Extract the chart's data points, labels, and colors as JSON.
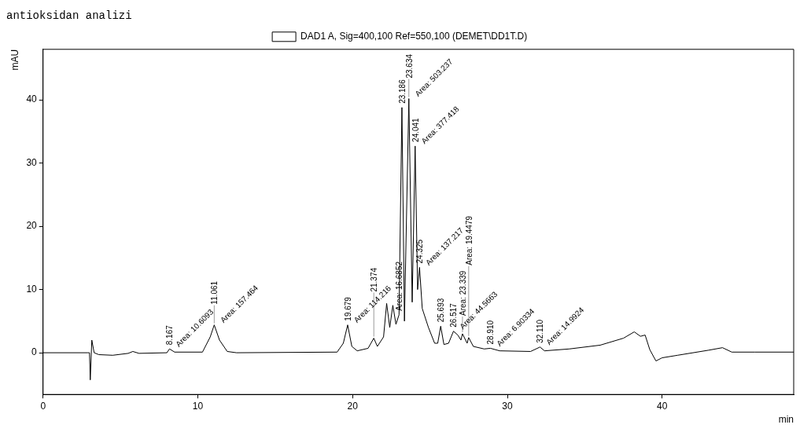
{
  "chart_data": {
    "type": "line",
    "title": "antioksidan analizi",
    "xlabel": "min",
    "ylabel": "mAU",
    "legend": "top",
    "xlim": [
      0,
      48.5
    ],
    "xticks": [
      0,
      10,
      20,
      30,
      40
    ],
    "ylim": [
      -6.6,
      48
    ],
    "yticks": [
      0,
      10,
      20,
      30,
      40
    ],
    "grid": false,
    "marker": "none",
    "line_style": "solid",
    "series": [
      {
        "name": "DAD1 A, Sig=400,100 Ref=550,100 (DEMET\\DD1T.D)",
        "color": "#000000",
        "x": [
          0,
          2.9,
          3.0,
          3.05,
          3.15,
          3.3,
          3.6,
          4.5,
          5.5,
          5.8,
          6.2,
          8,
          8.17,
          8.5,
          10.3,
          10.8,
          11.06,
          11.4,
          11.9,
          12.5,
          19.0,
          19.4,
          19.68,
          19.95,
          20.3,
          21.0,
          21.37,
          21.6,
          22.0,
          22.2,
          22.4,
          22.6,
          22.8,
          23.0,
          23.186,
          23.35,
          23.634,
          23.85,
          24.041,
          24.2,
          24.325,
          24.5,
          24.9,
          25.3,
          25.5,
          25.693,
          25.9,
          26.2,
          26.517,
          26.8,
          27.0,
          27.1,
          27.4,
          27.5,
          27.8,
          28.5,
          28.91,
          29.5,
          31.5,
          32.11,
          32.4,
          34,
          36,
          37.5,
          38.2,
          38.6,
          38.9,
          39.2,
          39.6,
          40,
          41,
          43,
          43.9,
          44.5,
          46,
          48.5
        ],
        "values": [
          0,
          0,
          0,
          -4.3,
          2.0,
          0,
          -0.3,
          -0.4,
          -0.1,
          0.2,
          -0.1,
          0,
          0.6,
          0.1,
          0.1,
          2.5,
          4.4,
          2.0,
          0.2,
          0,
          0.1,
          1.5,
          4.4,
          1.0,
          0.3,
          0.7,
          2.3,
          1.0,
          2.5,
          7.8,
          4,
          7.5,
          4.5,
          6,
          38.8,
          5,
          40.2,
          8,
          32.7,
          10,
          13.5,
          7,
          4,
          1.5,
          1.5,
          4.2,
          1.3,
          1.5,
          3.4,
          2.8,
          2.0,
          3,
          1.5,
          2.4,
          1.0,
          0.6,
          0.7,
          0.3,
          0.2,
          0.9,
          0.3,
          0.6,
          1.2,
          2.3,
          3.3,
          2.6,
          2.8,
          0.5,
          -1.3,
          -0.8,
          -0.4,
          0.4,
          0.8,
          0.1,
          0.1,
          0.1
        ]
      }
    ],
    "annotations": [
      {
        "text": "8.167",
        "x": 8.17,
        "y": 0.6
      },
      {
        "text": "Area: 10.6093",
        "x": 8.17,
        "y": 0.6
      },
      {
        "text": "11.061",
        "x": 11.06,
        "y": 4.4
      },
      {
        "text": "Area: 157.464",
        "x": 11.06,
        "y": 4.4
      },
      {
        "text": "19.679",
        "x": 19.68,
        "y": 4.4
      },
      {
        "text": "Area: 114.216",
        "x": 19.68,
        "y": 4.4
      },
      {
        "text": "21.374",
        "x": 21.37,
        "y": 2.3
      },
      {
        "text": "Area: 16.6852",
        "x": 23.0,
        "y": 6
      },
      {
        "text": "23.186",
        "x": 23.186,
        "y": 38.8
      },
      {
        "text": "23.634",
        "x": 23.634,
        "y": 40.2
      },
      {
        "text": "Area: 503.237",
        "x": 23.634,
        "y": 40.2
      },
      {
        "text": "24.041",
        "x": 24.041,
        "y": 32.7
      },
      {
        "text": "Area: 377.418",
        "x": 24.041,
        "y": 32.7
      },
      {
        "text": "24.325",
        "x": 24.325,
        "y": 13.5
      },
      {
        "text": "Area: 137.217",
        "x": 24.325,
        "y": 13.5
      },
      {
        "text": "25.693",
        "x": 25.693,
        "y": 4.2
      },
      {
        "text": "26.517",
        "x": 26.517,
        "y": 3.4
      },
      {
        "text": "Area: 44.5663",
        "x": 26.517,
        "y": 3.4
      },
      {
        "text": "Area: 23.339",
        "x": 27.1,
        "y": 3
      },
      {
        "text": "Area: 19.4479",
        "x": 27.5,
        "y": 2.4
      },
      {
        "text": "28.910",
        "x": 28.91,
        "y": 0.7
      },
      {
        "text": "Area: 6.90334",
        "x": 28.91,
        "y": 0.7
      },
      {
        "text": "32.110",
        "x": 32.11,
        "y": 0.9
      },
      {
        "text": "Area: 14.9924",
        "x": 32.11,
        "y": 0.9
      }
    ]
  }
}
